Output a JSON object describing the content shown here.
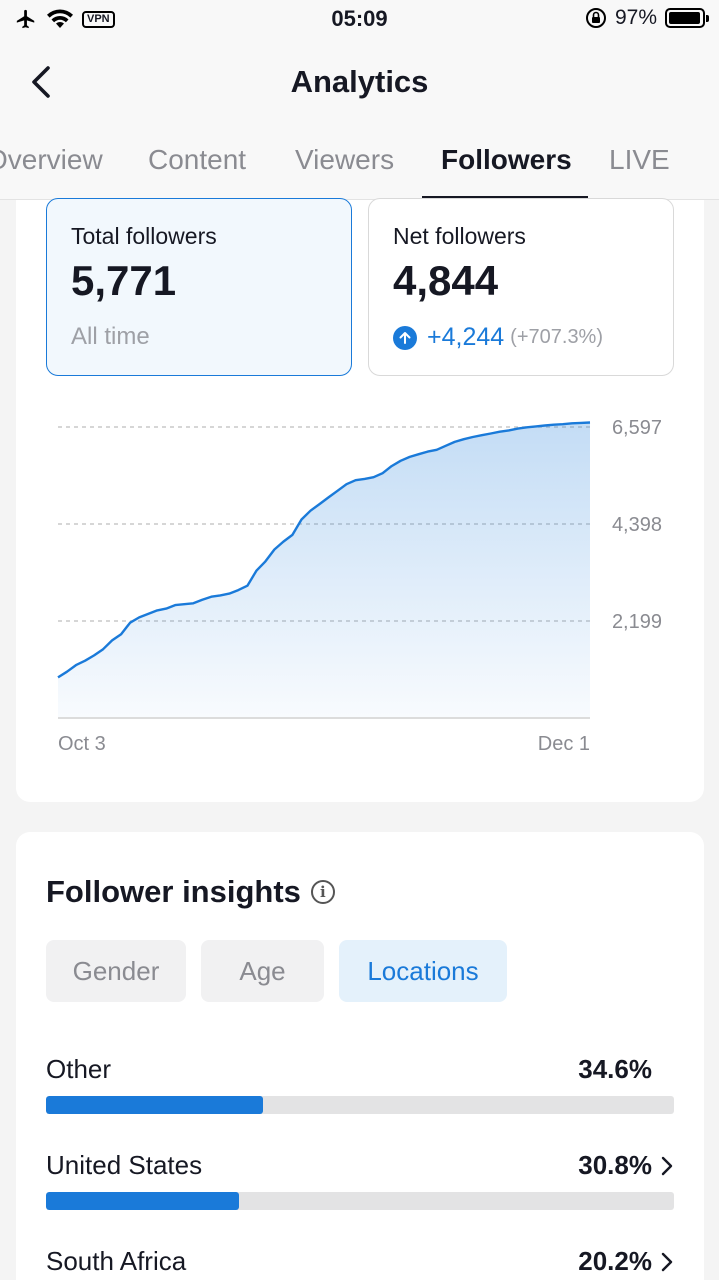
{
  "status_bar": {
    "vpn": "VPN",
    "time": "05:09",
    "battery": "97%",
    "battery_level": 0.97
  },
  "header": {
    "title": "Analytics"
  },
  "tabs": [
    {
      "label": "Overview",
      "active": false
    },
    {
      "label": "Content",
      "active": false
    },
    {
      "label": "Viewers",
      "active": false
    },
    {
      "label": "Followers",
      "active": true
    },
    {
      "label": "LIVE",
      "active": false
    }
  ],
  "stats": {
    "total": {
      "label": "Total followers",
      "value": "5,771",
      "sub": "All time"
    },
    "net": {
      "label": "Net followers",
      "value": "4,844",
      "change": "+4,244",
      "change_pct": "(+707.3%)"
    }
  },
  "chart_data": {
    "type": "area",
    "x_start_label": "Oct 3",
    "x_end_label": "Dec 1",
    "y_tick_labels": [
      "6,597",
      "4,398",
      "2,199"
    ],
    "y_ticks": [
      6597,
      4398,
      2199
    ],
    "ylim": [
      0,
      6597
    ],
    "grid": true,
    "color": "#1a7ad9",
    "values": [
      920,
      1050,
      1200,
      1300,
      1420,
      1560,
      1760,
      1900,
      2160,
      2280,
      2360,
      2440,
      2480,
      2560,
      2580,
      2600,
      2680,
      2750,
      2780,
      2820,
      2900,
      3000,
      3340,
      3550,
      3820,
      4000,
      4150,
      4500,
      4700,
      4850,
      5000,
      5150,
      5300,
      5390,
      5420,
      5460,
      5550,
      5710,
      5830,
      5920,
      5980,
      6040,
      6080,
      6170,
      6260,
      6320,
      6370,
      6410,
      6450,
      6490,
      6520,
      6560,
      6590,
      6610,
      6630,
      6650,
      6660,
      6680,
      6690,
      6700
    ]
  },
  "insights": {
    "title": "Follower insights",
    "info_icon": "info-icon",
    "chips": [
      {
        "label": "Gender",
        "active": false
      },
      {
        "label": "Age",
        "active": false
      },
      {
        "label": "Locations",
        "active": true
      }
    ],
    "locations": [
      {
        "name": "Other",
        "pct": "34.6%",
        "value": 34.6,
        "chevron": false
      },
      {
        "name": "United States",
        "pct": "30.8%",
        "value": 30.8,
        "chevron": true
      },
      {
        "name": "South Africa",
        "pct": "20.2%",
        "value": 20.2,
        "chevron": true
      }
    ]
  }
}
